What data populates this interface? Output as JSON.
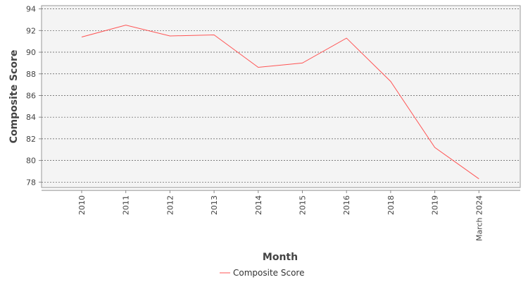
{
  "chart_data": {
    "type": "line",
    "title": "",
    "xlabel": "Month",
    "ylabel": "Composite Score",
    "categories": [
      "2010",
      "2011",
      "2012",
      "2013",
      "2014",
      "2015",
      "2016",
      "2018",
      "2019",
      "March 2024"
    ],
    "series": [
      {
        "name": "Composite Score",
        "color": "#ff5555",
        "values": [
          91.4,
          92.5,
          91.5,
          91.6,
          88.6,
          89.0,
          91.3,
          87.3,
          81.2,
          78.3
        ]
      }
    ],
    "ylim": [
      77.5,
      94.3
    ],
    "yticks": [
      78,
      80,
      82,
      84,
      86,
      88,
      90,
      92,
      94
    ],
    "grid": true,
    "legend": "bottom-center",
    "colors": {
      "plot_background": "#f4f4f4",
      "grid": "#555555",
      "axis": "#888888"
    }
  }
}
